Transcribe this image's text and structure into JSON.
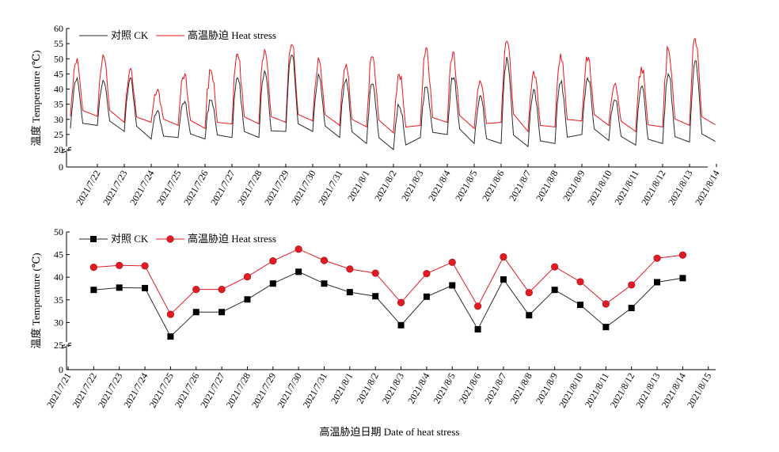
{
  "colors": {
    "ck": "#2a2a2a",
    "heat": "#e8141c",
    "heat_marker": "#e01b24",
    "ck_marker": "#000000"
  },
  "chart_data": [
    {
      "type": "line",
      "subtype": "hourly temperature time series",
      "ylabel": "温度 Temperature (℃)",
      "xlabel": "",
      "y_ticks": [
        0,
        20,
        25,
        30,
        35,
        40,
        45,
        50,
        55,
        60
      ],
      "ylim": [
        0,
        60
      ],
      "y_break": [
        0,
        20
      ],
      "categories": [
        "2021/7/22",
        "2021/7/23",
        "2021/7/24",
        "2021/7/25",
        "2021/7/26",
        "2021/7/27",
        "2021/7/28",
        "2021/7/29",
        "2021/7/30",
        "2021/7/31",
        "2021/8/1",
        "2021/8/2",
        "2021/8/3",
        "2021/8/4",
        "2021/8/5",
        "2021/8/6",
        "2021/8/7",
        "2021/8/8",
        "2021/8/9",
        "2021/8/10",
        "2021/8/11",
        "2021/8/12",
        "2021/8/13",
        "2021/8/14"
      ],
      "legend_position": "top-left",
      "series": [
        {
          "name": "对照 CK",
          "daily_min": [
            27.0,
            28.0,
            26.0,
            23.5,
            24.0,
            23.5,
            24.0,
            24.0,
            26.0,
            26.0,
            24.0,
            22.0,
            20.0,
            24.0,
            25.0,
            22.0,
            22.0,
            21.0,
            22.0,
            25.0,
            23.0,
            21.5,
            22.0,
            22.5
          ],
          "daily_max": [
            44.0,
            43.0,
            44.0,
            33.0,
            36.0,
            37.0,
            44.0,
            46.0,
            52.0,
            45.0,
            43.5,
            42.0,
            35.0,
            41.0,
            44.0,
            38.0,
            51.0,
            40.0,
            43.0,
            44.0,
            37.0,
            41.0,
            45.0,
            50.0
          ]
        },
        {
          "name": "高温胁迫 Heat stress",
          "daily_min": [
            31.0,
            31.0,
            29.0,
            29.0,
            28.0,
            27.0,
            28.5,
            28.5,
            29.0,
            29.5,
            28.0,
            27.5,
            25.5,
            28.0,
            29.0,
            27.0,
            29.0,
            26.0,
            27.5,
            29.5,
            28.0,
            26.0,
            27.5,
            28.0
          ],
          "daily_max": [
            50.5,
            51.5,
            47.0,
            40.0,
            45.0,
            47.0,
            52.0,
            53.0,
            55.5,
            50.5,
            48.5,
            51.0,
            45.0,
            54.0,
            52.5,
            43.0,
            57.5,
            46.0,
            52.0,
            51.0,
            42.0,
            48.0,
            54.0,
            57.0
          ]
        }
      ]
    },
    {
      "type": "line",
      "subtype": "daily mean with markers",
      "ylabel": "温度 Temperature (℃)",
      "xlabel": "高温胁迫日期 Date of heat stress",
      "y_ticks": [
        0,
        25,
        30,
        35,
        40,
        45,
        50
      ],
      "ylim": [
        0,
        50
      ],
      "y_break": [
        0,
        25
      ],
      "categories": [
        "2021/7/21",
        "2021/7/22",
        "2021/7/23",
        "2021/7/24",
        "2021/7/25",
        "2021/7/26",
        "2021/7/27",
        "2021/7/28",
        "2021/7/29",
        "2021/7/30",
        "2021/7/31",
        "2021/8/1",
        "2021/8/2",
        "2021/8/3",
        "2021/8/4",
        "2021/8/5",
        "2021/8/6",
        "2021/8/7",
        "2021/8/8",
        "2021/8/9",
        "2021/8/10",
        "2021/8/11",
        "2021/8/12",
        "2021/8/13",
        "2021/8/14",
        "2021/8/15"
      ],
      "legend_position": "top-left",
      "series": [
        {
          "name": "对照 CK",
          "marker": "square",
          "x": [
            "2021/7/22",
            "2021/7/23",
            "2021/7/24",
            "2021/7/25",
            "2021/7/26",
            "2021/7/27",
            "2021/7/28",
            "2021/7/29",
            "2021/7/30",
            "2021/7/31",
            "2021/8/1",
            "2021/8/2",
            "2021/8/3",
            "2021/8/4",
            "2021/8/5",
            "2021/8/6",
            "2021/8/7",
            "2021/8/8",
            "2021/8/9",
            "2021/8/10",
            "2021/8/11",
            "2021/8/12",
            "2021/8/13",
            "2021/8/14"
          ],
          "values": [
            37.2,
            37.7,
            37.6,
            26.9,
            32.3,
            32.3,
            35.1,
            38.6,
            41.2,
            38.6,
            36.7,
            35.8,
            29.4,
            35.7,
            38.2,
            28.5,
            39.5,
            31.6,
            37.2,
            33.9,
            29.0,
            33.2,
            38.9,
            39.8
          ]
        },
        {
          "name": "高温胁迫 Heat stress",
          "marker": "circle",
          "x": [
            "2021/7/22",
            "2021/7/23",
            "2021/7/24",
            "2021/7/25",
            "2021/7/26",
            "2021/7/27",
            "2021/7/28",
            "2021/7/29",
            "2021/7/30",
            "2021/7/31",
            "2021/8/1",
            "2021/8/2",
            "2021/8/3",
            "2021/8/4",
            "2021/8/5",
            "2021/8/6",
            "2021/8/7",
            "2021/8/8",
            "2021/8/9",
            "2021/8/10",
            "2021/8/11",
            "2021/8/12",
            "2021/8/13",
            "2021/8/14"
          ],
          "values": [
            42.2,
            42.6,
            42.5,
            31.8,
            37.3,
            37.3,
            40.1,
            43.6,
            46.2,
            43.7,
            41.8,
            40.9,
            34.4,
            40.8,
            43.3,
            33.6,
            44.5,
            36.6,
            42.3,
            39.0,
            34.1,
            38.3,
            44.2,
            44.9
          ]
        }
      ]
    }
  ]
}
